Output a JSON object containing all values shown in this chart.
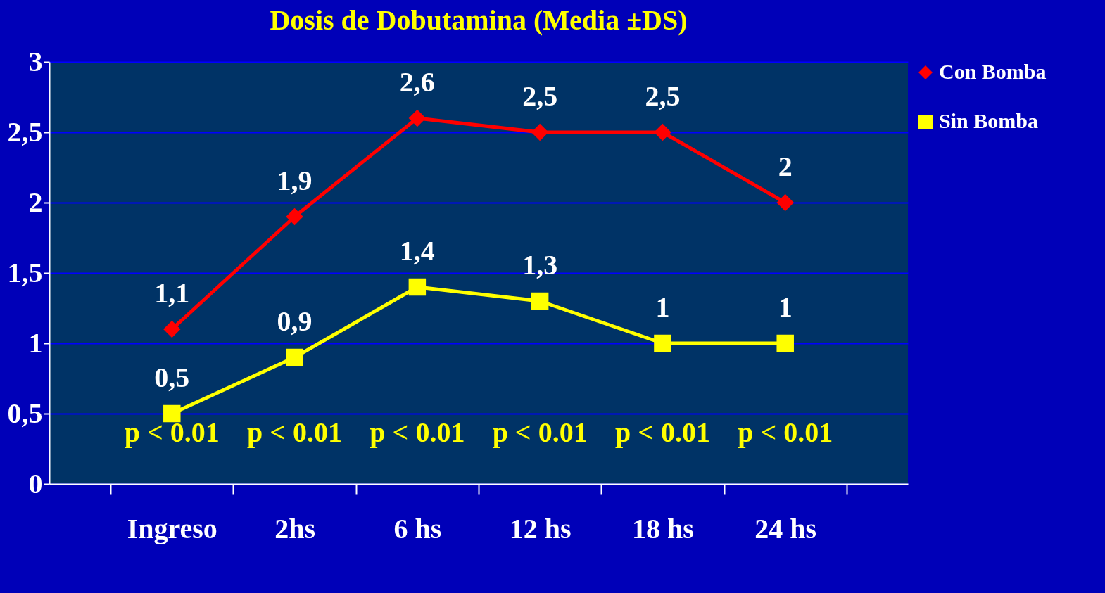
{
  "chart_data": {
    "type": "line",
    "title": "Dosis de Dobutamina (Media ±DS)",
    "categories": [
      "Ingreso",
      "2hs",
      "6 hs",
      "12 hs",
      "18 hs",
      "24 hs"
    ],
    "series": [
      {
        "name": "Con Bomba",
        "color": "#ff0000",
        "marker": "diamond",
        "values": [
          1.1,
          1.9,
          2.6,
          2.5,
          2.5,
          2
        ],
        "value_labels": [
          "1,1",
          "1,9",
          "2,6",
          "2,5",
          "2,5",
          "2"
        ]
      },
      {
        "name": "Sin Bomba",
        "color": "#ffff00",
        "marker": "square",
        "values": [
          0.5,
          0.9,
          1.4,
          1.3,
          1,
          1
        ],
        "value_labels": [
          "0,5",
          "0,9",
          "1,4",
          "1,3",
          "1",
          "1"
        ]
      }
    ],
    "ylim": [
      0,
      3
    ],
    "yticks": [
      0,
      {
        "value": 0.5,
        "label": "0,5"
      },
      1,
      {
        "value": 1.5,
        "label": "1,5"
      },
      2,
      {
        "value": 2.5,
        "label": "2,5"
      },
      3
    ],
    "annotations": [
      "p < 0.01",
      "p < 0.01",
      "p < 0.01",
      "p < 0.01",
      "p < 0.01",
      "p < 0.01"
    ],
    "grid": "y",
    "legend": "top right"
  }
}
